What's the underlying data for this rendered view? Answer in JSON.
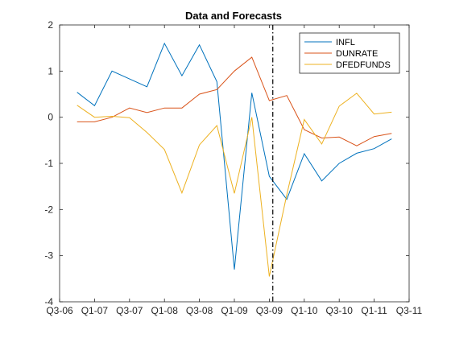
{
  "chart_data": {
    "type": "line",
    "title": "Data and Forecasts",
    "xlabel": "",
    "ylabel": "",
    "x_tick_labels": [
      "Q3-06",
      "Q1-07",
      "Q3-07",
      "Q1-08",
      "Q3-08",
      "Q1-09",
      "Q3-09",
      "Q1-10",
      "Q3-10",
      "Q1-11",
      "Q3-11"
    ],
    "xlim": [
      0,
      20
    ],
    "ylim": [
      -4,
      2
    ],
    "y_ticks": [
      -4,
      -3,
      -2,
      -1,
      0,
      1,
      2
    ],
    "y_tick_labels": [
      "-4",
      "-3",
      "-2",
      "-1",
      "0",
      "1",
      "2"
    ],
    "legend_position": "top-right",
    "grid": false,
    "forecast_start_x": 12.2,
    "x": [
      1,
      2,
      3,
      4,
      5,
      6,
      7,
      8,
      9,
      10,
      11,
      12,
      13,
      14,
      15,
      16,
      17,
      18,
      19
    ],
    "series": [
      {
        "name": "INFL",
        "color": "#0072BD",
        "values": [
          0.54,
          0.25,
          1.0,
          0.83,
          0.66,
          1.6,
          0.9,
          1.57,
          0.77,
          -3.3,
          0.53,
          -1.28,
          -1.78,
          -0.79,
          -1.38,
          -1.0,
          -0.78,
          -0.68,
          -0.47
        ]
      },
      {
        "name": "DUNRATE",
        "color": "#D95319",
        "values": [
          -0.1,
          -0.1,
          0.0,
          0.2,
          0.1,
          0.2,
          0.2,
          0.5,
          0.6,
          1.0,
          1.3,
          0.36,
          0.47,
          -0.27,
          -0.45,
          -0.43,
          -0.62,
          -0.42,
          -0.35
        ]
      },
      {
        "name": "DFEDFUNDS",
        "color": "#EDB120",
        "values": [
          0.26,
          0.0,
          0.02,
          -0.01,
          -0.33,
          -0.7,
          -1.64,
          -0.6,
          -0.18,
          -1.65,
          0.0,
          -3.45,
          -1.68,
          -0.05,
          -0.58,
          0.24,
          0.52,
          0.07,
          0.11
        ]
      }
    ]
  }
}
